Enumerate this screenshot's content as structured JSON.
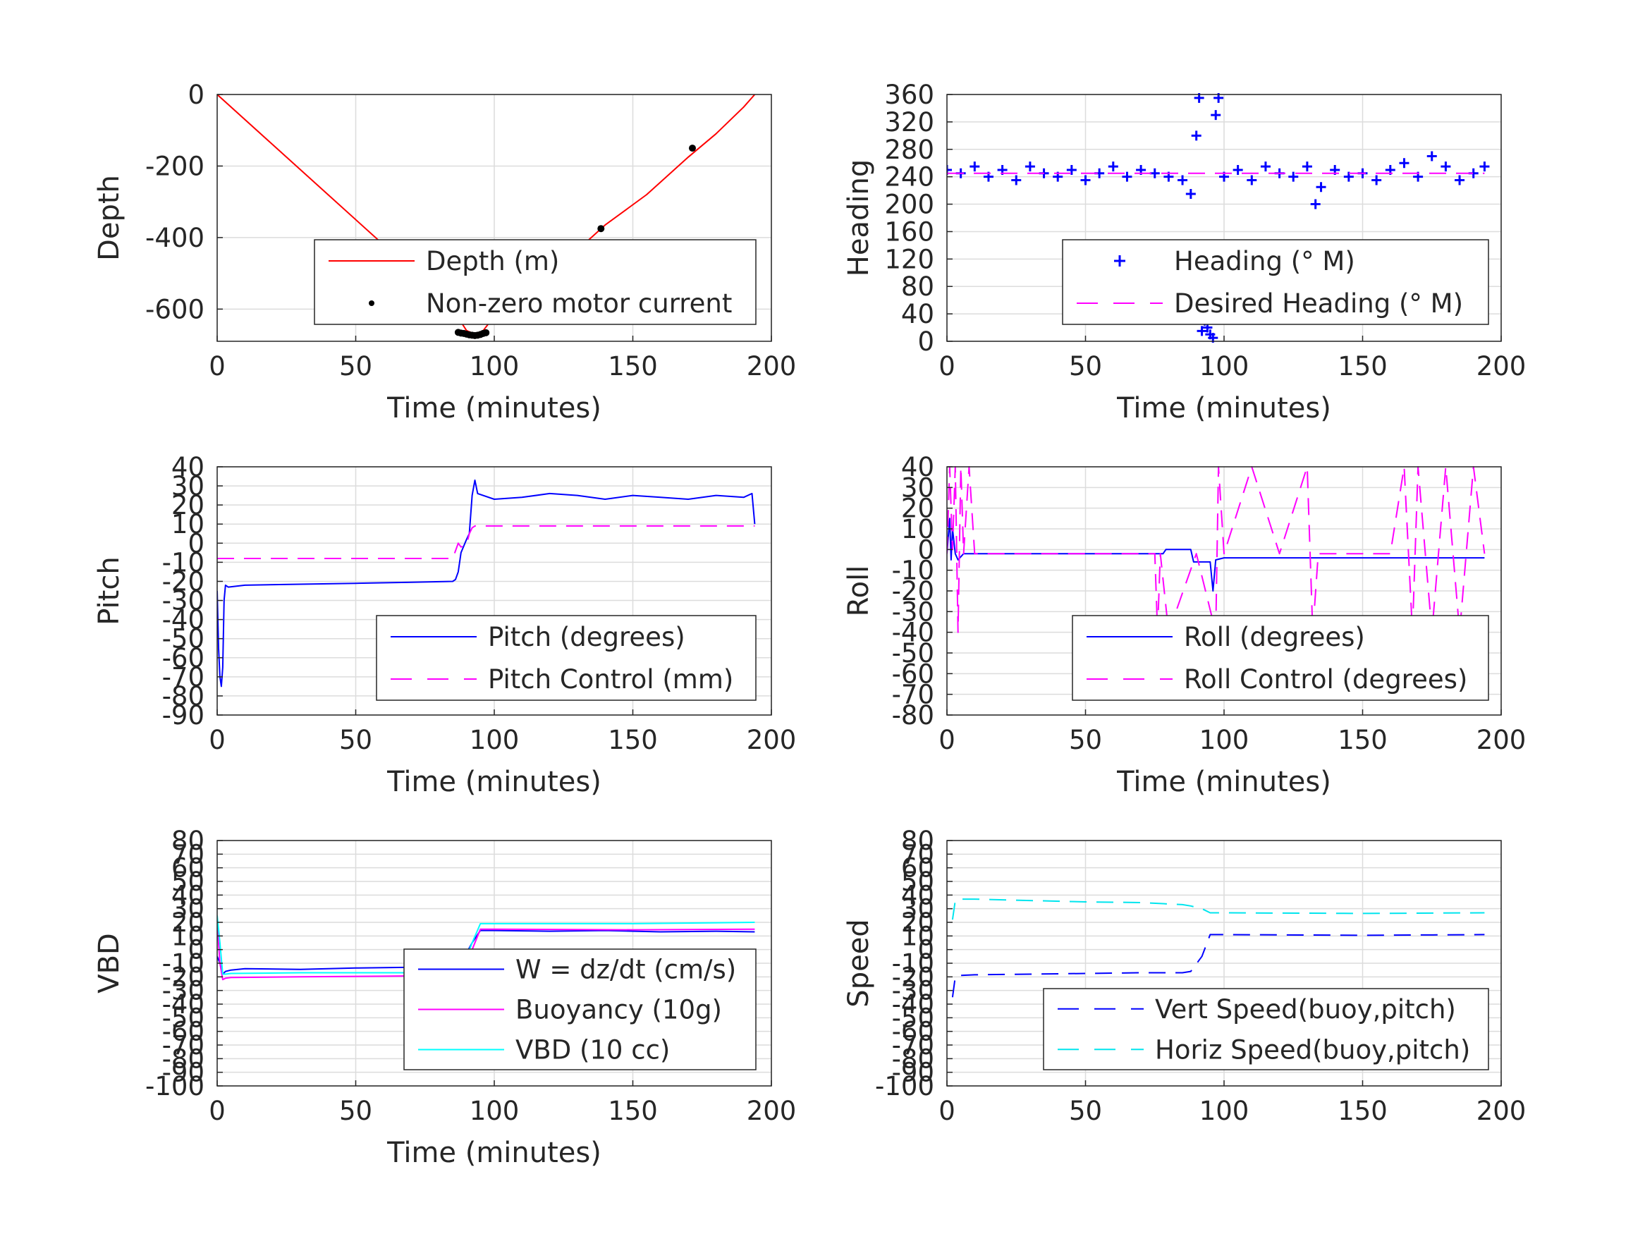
{
  "chart_data": [
    {
      "type": "line",
      "xlabel": "Time (minutes)",
      "ylabel": "Depth",
      "xlim": [
        0,
        200
      ],
      "ylim": [
        -690,
        0
      ],
      "xticks": [
        0,
        50,
        100,
        150,
        200
      ],
      "yticks": [
        0,
        -200,
        -400,
        -600
      ],
      "grid": true,
      "legend": "bottom-right-inside",
      "series": [
        {
          "name": "Depth (m)",
          "style": "solid",
          "color": "#ff0000",
          "x": [
            0,
            20,
            40,
            60,
            75,
            85,
            90,
            93,
            96,
            100,
            110,
            125,
            140,
            155,
            170,
            180,
            190,
            194
          ],
          "y": [
            0,
            -140,
            -280,
            -420,
            -520,
            -600,
            -660,
            -670,
            -660,
            -620,
            -560,
            -470,
            -365,
            -280,
            -175,
            -110,
            -35,
            0
          ]
        },
        {
          "name": "Non-zero motor current",
          "style": "dot",
          "color": "#000000",
          "x": [
            87,
            88,
            89,
            90,
            91,
            92,
            93,
            94,
            95,
            96,
            97,
            138.5,
            171.5
          ],
          "y": [
            -665,
            -667,
            -668,
            -670,
            -672,
            -673,
            -674,
            -673,
            -671,
            -668,
            -666,
            -375,
            -150
          ]
        }
      ]
    },
    {
      "type": "scatter",
      "xlabel": "Time (minutes)",
      "ylabel": "Heading",
      "xlim": [
        0,
        200
      ],
      "ylim": [
        0,
        360
      ],
      "xticks": [
        0,
        50,
        100,
        150,
        200
      ],
      "yticks": [
        0,
        40,
        80,
        120,
        160,
        200,
        240,
        280,
        320,
        360
      ],
      "grid": true,
      "legend": "bottom-right-inside",
      "series": [
        {
          "name": "Heading (° M)",
          "style": "plus",
          "color": "#0000ff",
          "x": [
            0,
            5,
            10,
            15,
            20,
            25,
            30,
            35,
            40,
            45,
            50,
            55,
            60,
            65,
            70,
            75,
            80,
            85,
            88,
            90,
            91,
            92,
            93,
            94,
            95,
            96,
            97,
            98,
            100,
            105,
            110,
            115,
            120,
            125,
            130,
            133,
            135,
            140,
            145,
            150,
            155,
            160,
            165,
            170,
            175,
            180,
            185,
            190,
            194
          ],
          "y": [
            250,
            245,
            255,
            240,
            250,
            235,
            255,
            245,
            240,
            250,
            235,
            245,
            255,
            240,
            250,
            245,
            240,
            235,
            215,
            300,
            355,
            15,
            30,
            20,
            10,
            5,
            330,
            355,
            240,
            250,
            235,
            255,
            245,
            240,
            255,
            200,
            225,
            250,
            240,
            245,
            235,
            250,
            260,
            240,
            270,
            255,
            235,
            245,
            255
          ]
        },
        {
          "name": "Desired Heading (° M)",
          "style": "dash",
          "color": "#ff00ff",
          "x": [
            0,
            194
          ],
          "y": [
            245,
            245
          ]
        }
      ]
    },
    {
      "type": "line",
      "xlabel": "Time (minutes)",
      "ylabel": "Pitch",
      "xlim": [
        0,
        200
      ],
      "ylim": [
        -90,
        40
      ],
      "xticks": [
        0,
        50,
        100,
        150,
        200
      ],
      "yticks": [
        40,
        30,
        20,
        10,
        0,
        -10,
        -20,
        -30,
        -40,
        -50,
        -60,
        -70,
        -80,
        -90
      ],
      "grid": true,
      "legend": "bottom-right-inside",
      "series": [
        {
          "name": "Pitch (degrees)",
          "style": "solid",
          "color": "#0000ff",
          "x": [
            0,
            0.5,
            1,
            1.5,
            2,
            2.5,
            3,
            4,
            10,
            30,
            50,
            70,
            85,
            86,
            87,
            88,
            90,
            91,
            92,
            93,
            94,
            100,
            110,
            120,
            130,
            140,
            150,
            160,
            170,
            180,
            190,
            193,
            194
          ],
          "y": [
            -25,
            -55,
            -70,
            -75,
            -65,
            -30,
            -22,
            -23,
            -22,
            -21.5,
            -21,
            -20.5,
            -20,
            -19,
            -15,
            -5,
            2,
            5,
            25,
            33,
            26,
            23,
            24,
            26,
            25,
            23,
            25,
            24,
            23,
            25,
            24,
            26,
            10
          ]
        },
        {
          "name": "Pitch Control (mm)",
          "style": "dash",
          "color": "#ff00ff",
          "x": [
            0,
            85,
            86,
            87,
            88,
            90,
            91,
            92,
            93,
            100,
            194
          ],
          "y": [
            -8,
            -8,
            -4,
            0,
            -2,
            -1,
            5,
            8,
            9,
            9,
            9
          ]
        }
      ]
    },
    {
      "type": "line",
      "xlabel": "Time (minutes)",
      "ylabel": "Roll",
      "xlim": [
        0,
        200
      ],
      "ylim": [
        -80,
        40
      ],
      "xticks": [
        0,
        50,
        100,
        150,
        200
      ],
      "yticks": [
        40,
        30,
        20,
        10,
        0,
        -10,
        -20,
        -30,
        -40,
        -50,
        -60,
        -70,
        -80
      ],
      "grid": true,
      "legend": "bottom-right-inside",
      "series": [
        {
          "name": "Roll (degrees)",
          "style": "solid",
          "color": "#0000ff",
          "x": [
            0,
            1,
            1.5,
            2,
            3,
            4,
            6,
            8,
            10,
            20,
            30,
            40,
            50,
            60,
            70,
            75,
            78,
            79,
            80,
            85,
            88,
            89,
            90,
            95,
            96,
            97,
            100,
            110,
            120,
            130,
            140,
            150,
            160,
            170,
            180,
            190,
            194
          ],
          "y": [
            -2,
            15,
            -5,
            10,
            -2,
            -5,
            -2,
            -2,
            -2,
            -2,
            -2,
            -2,
            -2,
            -2,
            -2,
            -2,
            -2,
            0,
            0,
            0,
            0,
            -6,
            -6,
            -6,
            -20,
            -5,
            -4,
            -4,
            -4,
            -4,
            -4,
            -4,
            -4,
            -4,
            -4,
            -4,
            -4
          ]
        },
        {
          "name": "Roll Control (degrees)",
          "style": "dash",
          "color": "#ff00ff",
          "x": [
            0,
            1,
            2,
            3,
            4,
            5,
            6,
            8,
            10,
            20,
            40,
            60,
            75,
            76,
            77,
            80,
            90,
            97,
            98,
            100,
            110,
            120,
            130,
            132,
            134,
            140,
            160,
            165,
            168,
            170,
            175,
            180,
            185,
            190,
            194
          ],
          "y": [
            -2,
            40,
            0,
            40,
            -40,
            40,
            -2,
            40,
            -2,
            -2,
            -2,
            -2,
            -2,
            -40,
            -2,
            -40,
            -2,
            -40,
            40,
            -2,
            40,
            -2,
            40,
            -40,
            -2,
            -2,
            -2,
            40,
            -40,
            40,
            -40,
            40,
            -40,
            40,
            -2
          ]
        }
      ]
    },
    {
      "type": "line",
      "xlabel": "Time (minutes)",
      "ylabel": "VBD",
      "xlim": [
        0,
        200
      ],
      "ylim": [
        -100,
        80
      ],
      "xticks": [
        0,
        50,
        100,
        150,
        200
      ],
      "yticks": [
        80,
        70,
        60,
        50,
        40,
        30,
        20,
        10,
        0,
        -10,
        -20,
        -30,
        -40,
        -50,
        -60,
        -70,
        -80,
        -90,
        -100
      ],
      "grid": true,
      "legend": "bottom-right-inside",
      "series": [
        {
          "name": "W = dz/dt (cm/s)",
          "style": "solid",
          "color": "#0000ff",
          "x": [
            0,
            1,
            2,
            3,
            5,
            10,
            30,
            50,
            70,
            85,
            88,
            92,
            95,
            100,
            120,
            140,
            160,
            180,
            194
          ],
          "y": [
            -5,
            -10,
            -18,
            -16,
            -15,
            -14,
            -14.5,
            -13.5,
            -13,
            -13,
            -10,
            5,
            14,
            14,
            13.5,
            14,
            13,
            13.5,
            13
          ]
        },
        {
          "name": "Buoyancy (10g)",
          "style": "solid",
          "color": "#ff00ff",
          "x": [
            0,
            1,
            2,
            3,
            5,
            30,
            60,
            87,
            88,
            92,
            95,
            100,
            150,
            194
          ],
          "y": [
            20,
            -10,
            -22,
            -21,
            -20.5,
            -20,
            -19.5,
            -19,
            -18,
            0,
            15,
            15,
            14.5,
            15
          ]
        },
        {
          "name": "VBD (10 cc)",
          "style": "solid",
          "color": "#00ffff",
          "x": [
            0,
            1,
            2,
            3,
            5,
            30,
            60,
            87,
            88,
            92,
            95,
            100,
            150,
            194
          ],
          "y": [
            25,
            5,
            -18,
            -18,
            -17.5,
            -17,
            -17,
            -17,
            -16,
            5,
            19,
            19,
            19,
            20
          ]
        }
      ]
    },
    {
      "type": "line",
      "xlabel": "",
      "ylabel": "Speed",
      "xlim": [
        0,
        200
      ],
      "ylim": [
        -100,
        80
      ],
      "xticks": [
        0,
        50,
        100,
        150,
        200
      ],
      "yticks": [
        80,
        70,
        60,
        50,
        40,
        30,
        20,
        10,
        0,
        -10,
        -20,
        -30,
        -40,
        -50,
        -60,
        -70,
        -80,
        -90,
        -100
      ],
      "grid": true,
      "legend": "bottom-right-inside",
      "series": [
        {
          "name": "Vert Speed(buoy,pitch)",
          "style": "dash",
          "color": "#0000ff",
          "x": [
            2,
            3,
            4,
            10,
            30,
            50,
            70,
            85,
            88,
            92,
            95,
            100,
            150,
            194
          ],
          "y": [
            -35,
            -20,
            -19,
            -18.5,
            -18,
            -17.5,
            -17,
            -17,
            -16,
            -5,
            11,
            11,
            10.5,
            11
          ]
        },
        {
          "name": "Horiz Speed(buoy,pitch)",
          "style": "dash",
          "color": "#00e5ee",
          "x": [
            2,
            3,
            4,
            10,
            30,
            50,
            70,
            85,
            88,
            92,
            95,
            100,
            150,
            194
          ],
          "y": [
            22,
            36,
            37,
            37,
            36,
            35,
            34.5,
            33,
            32,
            30,
            27,
            27,
            26.5,
            27
          ]
        }
      ]
    }
  ]
}
